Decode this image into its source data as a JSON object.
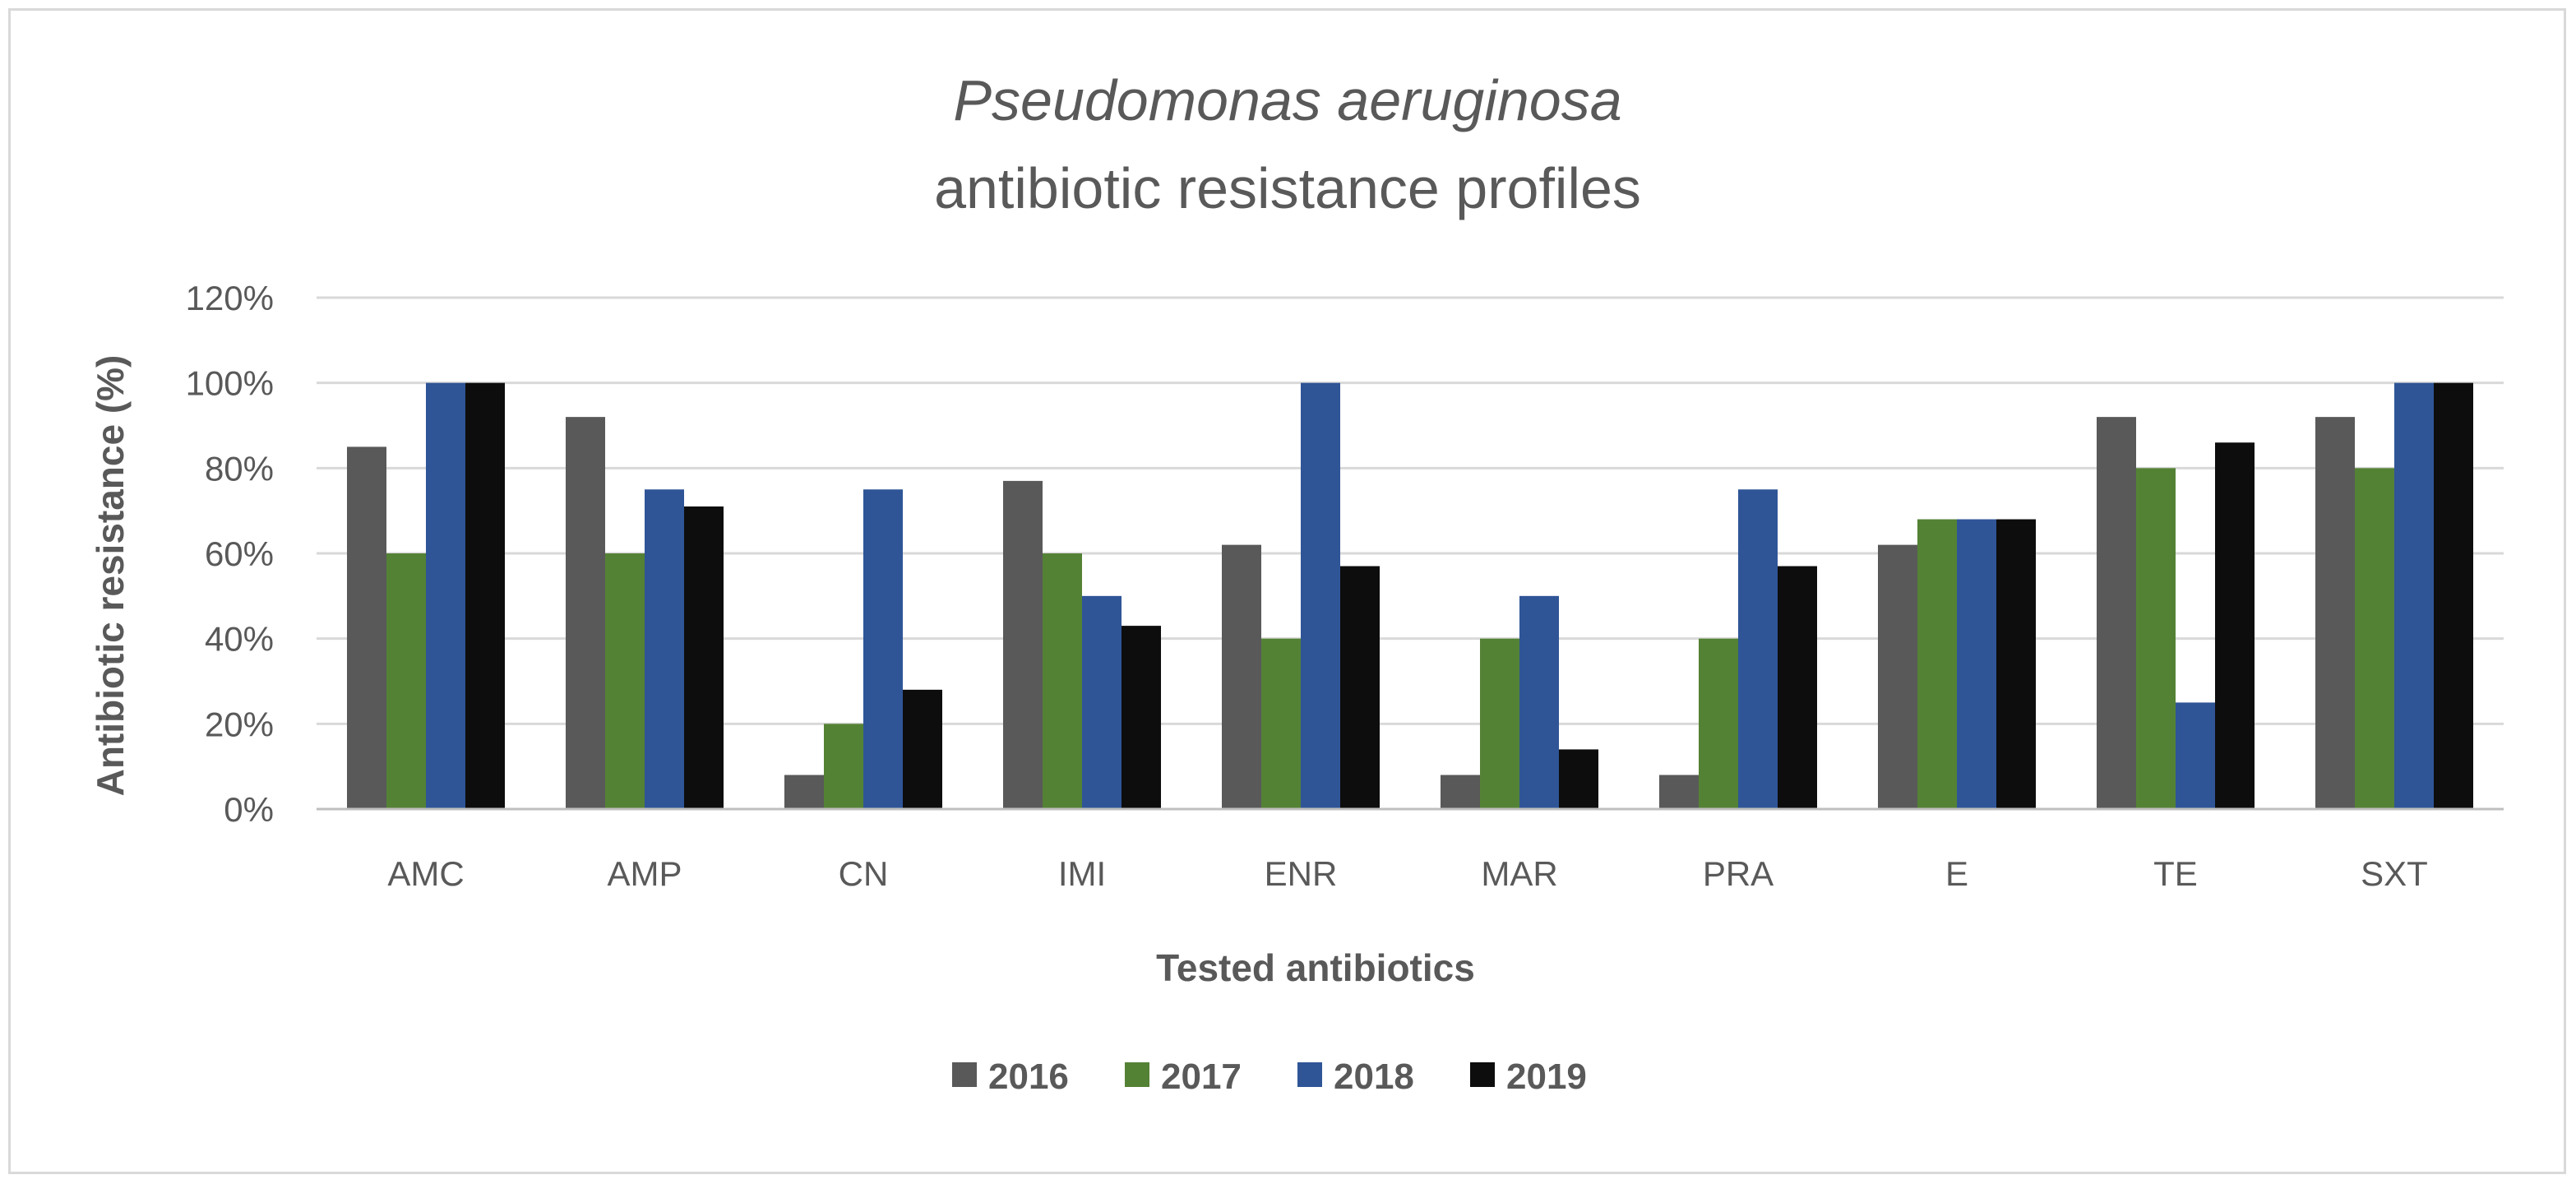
{
  "chart_data": {
    "type": "bar",
    "title_line1": "Pseudomonas aeruginosa",
    "title_line2": "antibiotic resistance profiles",
    "xlabel": "Tested antibiotics",
    "ylabel": "Antibiotic resistance (%)",
    "ylim": [
      0,
      120
    ],
    "yticks": [
      "0%",
      "20%",
      "40%",
      "60%",
      "80%",
      "100%",
      "120%"
    ],
    "grid": true,
    "legend_position": "bottom-center",
    "categories": [
      "AMC",
      "AMP",
      "CN",
      "IMI",
      "ENR",
      "MAR",
      "PRA",
      "E",
      "TE",
      "SXT"
    ],
    "series": [
      {
        "name": "2016",
        "color": "#595959",
        "values": [
          85,
          92,
          8,
          77,
          62,
          8,
          8,
          62,
          92,
          92
        ]
      },
      {
        "name": "2017",
        "color": "#548235",
        "values": [
          60,
          60,
          20,
          60,
          40,
          40,
          40,
          68,
          80,
          80
        ]
      },
      {
        "name": "2018",
        "color": "#2f5597",
        "values": [
          100,
          75,
          75,
          50,
          100,
          50,
          75,
          68,
          25,
          100
        ]
      },
      {
        "name": "2019",
        "color": "#0d0d0d",
        "values": [
          100,
          71,
          28,
          43,
          57,
          14,
          57,
          68,
          86,
          100
        ]
      }
    ]
  }
}
